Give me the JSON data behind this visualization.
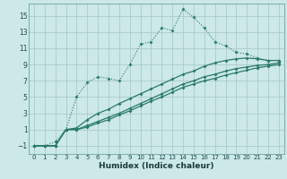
{
  "xlabel": "Humidex (Indice chaleur)",
  "bg_color": "#cce8e8",
  "grid_color": "#aacccc",
  "line_color": "#2a7a6a",
  "xlim": [
    -0.5,
    23.5
  ],
  "ylim": [
    -2.0,
    16.5
  ],
  "xticks": [
    0,
    1,
    2,
    3,
    4,
    5,
    6,
    7,
    8,
    9,
    10,
    11,
    12,
    13,
    14,
    15,
    16,
    17,
    18,
    19,
    20,
    21,
    22,
    23
  ],
  "yticks": [
    -1,
    1,
    3,
    5,
    7,
    9,
    11,
    13,
    15
  ],
  "curve1_x": [
    0,
    1,
    2,
    3,
    4,
    5,
    6,
    7,
    8,
    9,
    10,
    11,
    12,
    13,
    14,
    15,
    16,
    17,
    18,
    19,
    20,
    21,
    22,
    23
  ],
  "curve1_y": [
    -1,
    -1,
    -0.5,
    1,
    5,
    6.8,
    7.5,
    7.3,
    7.0,
    9.0,
    11.5,
    11.8,
    13.5,
    13.2,
    15.8,
    14.8,
    13.5,
    11.8,
    11.3,
    10.5,
    10.3,
    9.8,
    9.5,
    9.5
  ],
  "curve2_x": [
    0,
    1,
    2,
    3,
    4,
    5,
    6,
    7,
    8,
    9,
    10,
    11,
    12,
    13,
    14,
    15,
    16,
    17,
    18,
    19,
    20,
    21,
    22,
    23
  ],
  "curve2_y": [
    -1,
    -1,
    -1,
    1.0,
    1.2,
    2.2,
    3.0,
    3.5,
    4.2,
    4.8,
    5.4,
    6.0,
    6.6,
    7.2,
    7.8,
    8.2,
    8.8,
    9.2,
    9.5,
    9.7,
    9.8,
    9.7,
    9.5,
    9.5
  ],
  "curve3_x": [
    0,
    1,
    2,
    3,
    4,
    5,
    6,
    7,
    8,
    9,
    10,
    11,
    12,
    13,
    14,
    15,
    16,
    17,
    18,
    19,
    20,
    21,
    22,
    23
  ],
  "curve3_y": [
    -1,
    -1,
    -1,
    1.0,
    1.0,
    1.5,
    2.0,
    2.5,
    3.0,
    3.6,
    4.2,
    4.8,
    5.4,
    6.0,
    6.6,
    7.0,
    7.5,
    7.8,
    8.2,
    8.5,
    8.7,
    8.9,
    9.0,
    9.2
  ],
  "curve4_x": [
    0,
    1,
    2,
    3,
    4,
    5,
    6,
    7,
    8,
    9,
    10,
    11,
    12,
    13,
    14,
    15,
    16,
    17,
    18,
    19,
    20,
    21,
    22,
    23
  ],
  "curve4_y": [
    -1,
    -1,
    -1,
    1.0,
    1.0,
    1.3,
    1.8,
    2.2,
    2.8,
    3.3,
    3.9,
    4.5,
    5.0,
    5.6,
    6.2,
    6.6,
    7.0,
    7.3,
    7.7,
    8.0,
    8.3,
    8.6,
    8.8,
    9.0
  ]
}
